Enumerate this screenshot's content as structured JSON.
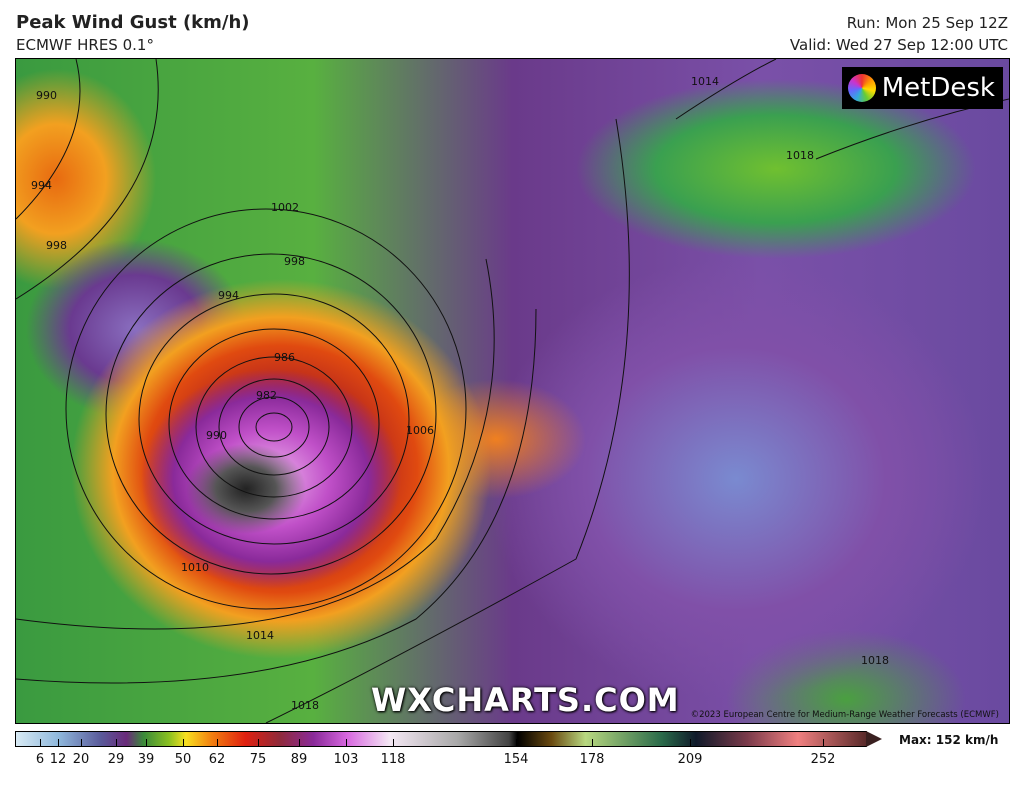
{
  "header": {
    "title": "Peak Wind Gust (km/h)",
    "model": "ECMWF HRES 0.1°",
    "run": "Run: Mon 25 Sep 12Z",
    "valid": "Valid: Wed 27 Sep 12:00 UTC"
  },
  "map": {
    "logo_text": "MetDesk",
    "watermark": "WXCHARTS.COM",
    "copyright": "©2023 European Centre for Medium-Range Weather Forecasts (ECMWF)",
    "isobar_labels": [
      "990",
      "994",
      "998",
      "1002",
      "998",
      "994",
      "986",
      "982",
      "990",
      "1006",
      "1010",
      "1014",
      "1018",
      "1014",
      "1018",
      "1018"
    ]
  },
  "legend": {
    "ticks": [
      "6",
      "12",
      "20",
      "29",
      "39",
      "50",
      "62",
      "75",
      "89",
      "103",
      "118",
      "154",
      "178",
      "209",
      "252"
    ],
    "max_label": "Max: 152 km/h"
  }
}
